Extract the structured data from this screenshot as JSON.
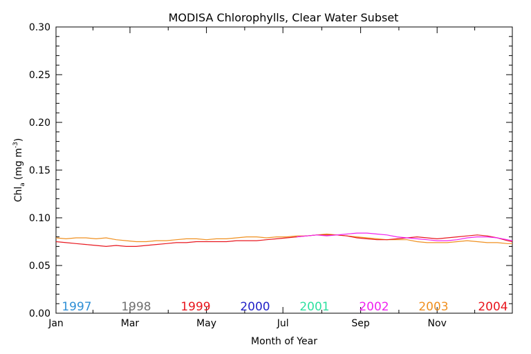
{
  "chart_data": {
    "type": "line",
    "title": "MODISA Chlorophylls, Clear Water Subset",
    "xlabel": "Month of Year",
    "ylabel": "Chl",
    "ylabel_sub": "a",
    "ylabel_units": "(mg m",
    "ylabel_exp": "-3",
    "ylabel_close": ")",
    "xlim": [
      1,
      365
    ],
    "ylim": [
      0,
      0.3
    ],
    "y_ticks": [
      0.0,
      0.05,
      0.1,
      0.15,
      0.2,
      0.25,
      0.3
    ],
    "y_tick_labels": [
      "0.00",
      "0.05",
      "0.10",
      "0.15",
      "0.20",
      "0.25",
      "0.30"
    ],
    "x_ticks": [
      1,
      60,
      121,
      182,
      244,
      305
    ],
    "x_tick_labels": [
      "Jan",
      "Mar",
      "May",
      "Jul",
      "Sep",
      "Nov"
    ],
    "legend": [
      {
        "label": "1997",
        "color": "#2e8fd6"
      },
      {
        "label": "1998",
        "color": "#707070"
      },
      {
        "label": "1999",
        "color": "#e8161e"
      },
      {
        "label": "2000",
        "color": "#2222c8"
      },
      {
        "label": "2001",
        "color": "#2ee0a0"
      },
      {
        "label": "2002",
        "color": "#f022f0"
      },
      {
        "label": "2003",
        "color": "#f09020"
      },
      {
        "label": "2004",
        "color": "#e8161e"
      }
    ],
    "series": [
      {
        "name": "2003",
        "color": "#f09020",
        "x": [
          1,
          9,
          17,
          25,
          33,
          41,
          49,
          57,
          65,
          73,
          81,
          89,
          97,
          105,
          113,
          121,
          129,
          137,
          145,
          153,
          161,
          169,
          177,
          185,
          193,
          201,
          209,
          217,
          225,
          233,
          241,
          249,
          257,
          265,
          273,
          281,
          289,
          297,
          305,
          313,
          321,
          329,
          337,
          345,
          353,
          361,
          365
        ],
        "y": [
          0.079,
          0.078,
          0.079,
          0.079,
          0.078,
          0.079,
          0.077,
          0.076,
          0.075,
          0.075,
          0.076,
          0.076,
          0.077,
          0.078,
          0.078,
          0.077,
          0.078,
          0.078,
          0.079,
          0.08,
          0.08,
          0.079,
          0.08,
          0.08,
          0.081,
          0.081,
          0.082,
          0.083,
          0.082,
          0.081,
          0.08,
          0.079,
          0.078,
          0.077,
          0.077,
          0.077,
          0.075,
          0.074,
          0.074,
          0.074,
          0.075,
          0.076,
          0.075,
          0.074,
          0.074,
          0.073,
          0.073
        ]
      },
      {
        "name": "2004",
        "color": "#e8161e",
        "x": [
          1,
          9,
          17,
          25,
          33,
          41,
          49,
          57,
          65,
          73,
          81,
          89,
          97,
          105,
          113,
          121,
          129,
          137,
          145,
          153,
          161,
          169,
          177,
          185,
          193,
          201,
          209,
          217,
          225,
          233,
          241,
          249,
          257,
          265,
          273,
          281,
          289,
          297,
          305,
          313,
          321,
          329,
          337,
          345,
          353,
          361,
          365
        ],
        "y": [
          0.075,
          0.074,
          0.073,
          0.072,
          0.071,
          0.07,
          0.071,
          0.07,
          0.07,
          0.071,
          0.072,
          0.073,
          0.074,
          0.074,
          0.075,
          0.075,
          0.075,
          0.075,
          0.076,
          0.076,
          0.076,
          0.077,
          0.078,
          0.079,
          0.08,
          0.081,
          0.082,
          0.082,
          0.082,
          0.081,
          0.079,
          0.078,
          0.077,
          0.077,
          0.078,
          0.079,
          0.08,
          0.079,
          0.078,
          0.079,
          0.08,
          0.081,
          0.082,
          0.081,
          0.079,
          0.076,
          0.075
        ]
      },
      {
        "name": "2002",
        "color": "#f022f0",
        "x": [
          193,
          201,
          209,
          217,
          225,
          233,
          241,
          249,
          257,
          265,
          273,
          281,
          289,
          297,
          305,
          313,
          321,
          329,
          337,
          345,
          353,
          361,
          365
        ],
        "y": [
          0.08,
          0.081,
          0.082,
          0.081,
          0.082,
          0.083,
          0.084,
          0.084,
          0.083,
          0.082,
          0.08,
          0.079,
          0.078,
          0.077,
          0.076,
          0.076,
          0.077,
          0.079,
          0.08,
          0.08,
          0.079,
          0.077,
          0.076
        ]
      }
    ]
  }
}
